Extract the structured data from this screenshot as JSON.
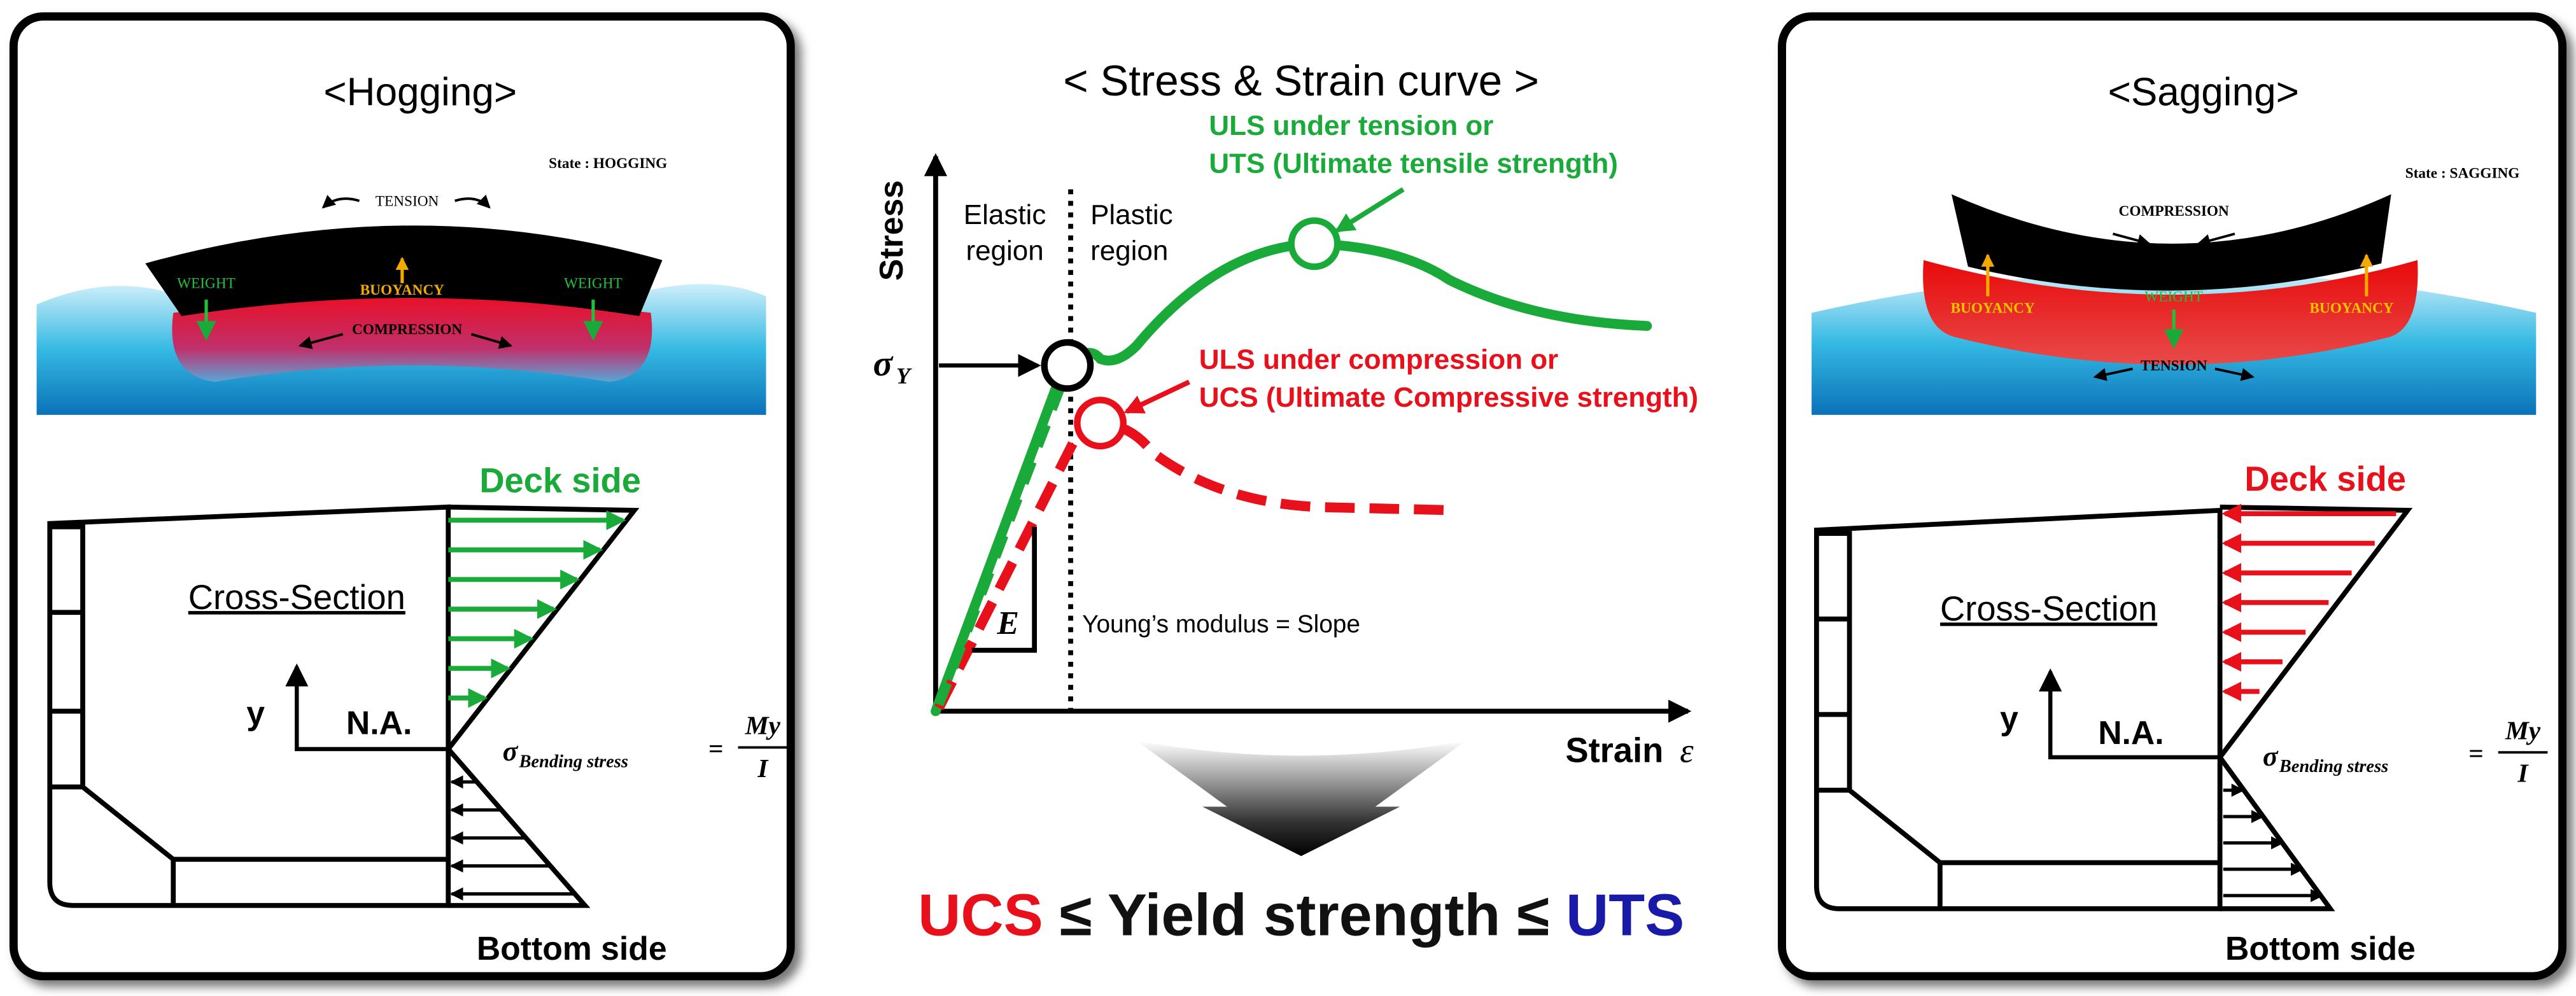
{
  "left_panel": {
    "title": "<Hogging>",
    "state": "State : HOGGING",
    "loads": {
      "tension": "TENSION",
      "weight_left": "WEIGHT",
      "buoyancy": "BUOYANCY",
      "weight_right": "WEIGHT",
      "compression": "COMPRESSION"
    },
    "deck_side": "Deck side",
    "cross_section": "Cross-Section",
    "y_axis": "y",
    "neutral_axis": "N.A.",
    "formula": {
      "sigma": "σ",
      "subscript": "Bending stress",
      "equals": "=",
      "numerator": "My",
      "denominator": "I"
    },
    "bottom_side": "Bottom side"
  },
  "center": {
    "title": "< Stress & Strain curve >",
    "y_axis": "Stress",
    "x_axis": "Strain",
    "x_symbol": "ε",
    "elastic": [
      "Elastic",
      "region"
    ],
    "plastic": [
      "Plastic",
      "region"
    ],
    "uts_label": [
      "ULS under tension or",
      "UTS (Ultimate tensile strength)"
    ],
    "ucs_label": [
      "ULS under compression or",
      "UCS (Ultimate Compressive strength)"
    ],
    "yield": {
      "sigma": "σ",
      "subscript": "Y"
    },
    "modulus_symbol": "E",
    "modulus_note": "Young’s modulus = Slope",
    "conclusion": {
      "ucs": "UCS",
      "middle": "≤ Yield strength ≤",
      "uts": "UTS"
    }
  },
  "right_panel": {
    "title": "<Sagging>",
    "state": "State : SAGGING",
    "loads": {
      "compression": "COMPRESSION",
      "buoyancy_left": "BUOYANCY",
      "weight": "WEIGHT",
      "buoyancy_right": "BUOYANCY",
      "tension": "TENSION"
    },
    "deck_side": "Deck side",
    "cross_section": "Cross-Section",
    "y_axis": "y",
    "neutral_axis": "N.A.",
    "formula": {
      "sigma": "σ",
      "subscript": "Bending stress",
      "equals": "=",
      "numerator": "My",
      "denominator": "I"
    },
    "bottom_side": "Bottom side"
  }
}
